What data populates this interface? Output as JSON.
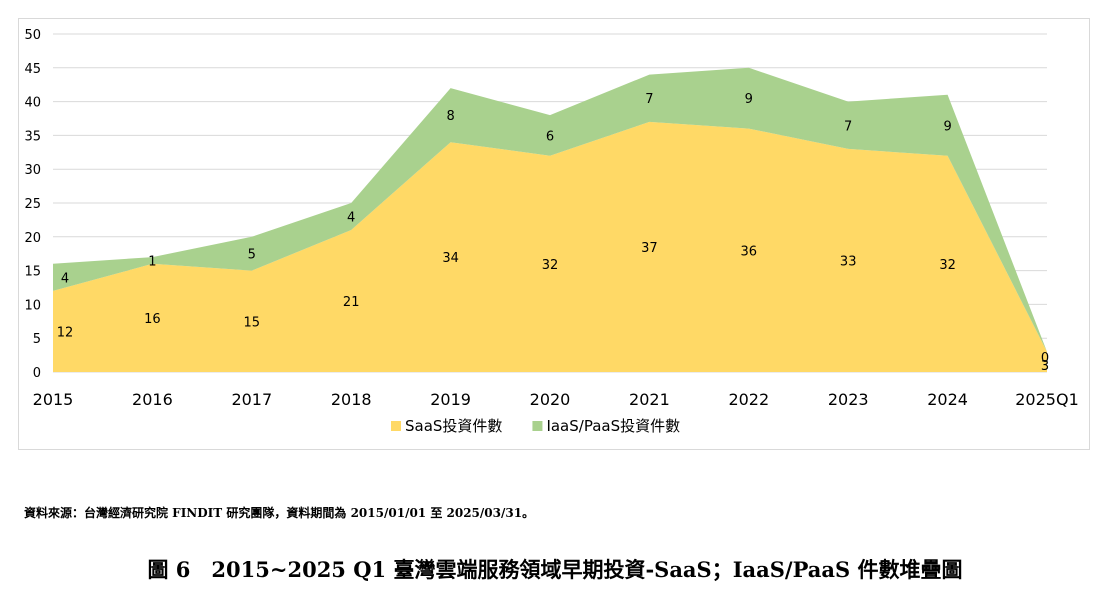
{
  "chart_data": {
    "type": "area",
    "stacked": true,
    "categories": [
      "2015",
      "2016",
      "2017",
      "2018",
      "2019",
      "2020",
      "2021",
      "2022",
      "2023",
      "2024",
      "2025Q1"
    ],
    "series": [
      {
        "name": "SaaS投資件數",
        "color": "#FFD966",
        "values": [
          12,
          16,
          15,
          21,
          34,
          32,
          37,
          36,
          33,
          32,
          3
        ]
      },
      {
        "name": "IaaS/PaaS投資件數",
        "color": "#A9D18E",
        "values": [
          4,
          1,
          5,
          4,
          8,
          6,
          7,
          9,
          7,
          9,
          0
        ]
      }
    ],
    "ylim": [
      0,
      50
    ],
    "yticks": [
      "0",
      "5",
      "10",
      "15",
      "20",
      "25",
      "30",
      "35",
      "40",
      "45",
      "50"
    ],
    "grid": true,
    "legend_position": "bottom-center",
    "gridline_color": "#d9d9d9"
  },
  "source_note": "資料來源：台灣經濟研究院 FINDIT 研究團隊，資料期間為 2015/01/01 至 2025/03/31。",
  "caption": "圖 6　2015~2025 Q1 臺灣雲端服務領域早期投資-SaaS；IaaS/PaaS 件數堆疊圖"
}
